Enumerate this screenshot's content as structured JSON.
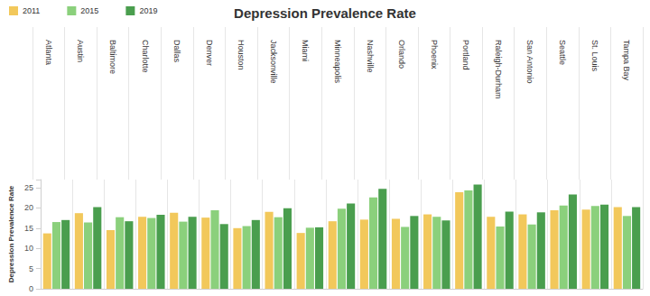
{
  "chart_data": {
    "type": "bar",
    "title": "Depression Prevalence Rate",
    "y_label": "Depression Prevalence Rate",
    "categories": [
      "Atlanta",
      "Austin",
      "Baltimore",
      "Charlotte",
      "Dallas",
      "Denver",
      "Houston",
      "Jacksonville",
      "Miami",
      "Minneapolis",
      "Nashville",
      "Orlando",
      "Phoenix",
      "Portland",
      "Raleigh-Durham",
      "San Antonio",
      "Seattle",
      "St. Louis",
      "Tampa Bay"
    ],
    "series": [
      {
        "name": "2011",
        "color": "#f2c85b",
        "values": [
          13.7,
          18.7,
          14.5,
          17.8,
          18.8,
          17.6,
          15.0,
          19.0,
          13.8,
          16.7,
          17.1,
          17.3,
          18.4,
          23.9,
          17.8,
          18.4,
          19.4,
          19.6,
          20.2
        ]
      },
      {
        "name": "2015",
        "color": "#8bd07c",
        "values": [
          16.5,
          16.4,
          17.7,
          17.5,
          16.6,
          19.4,
          15.5,
          17.7,
          15.1,
          19.8,
          22.6,
          15.3,
          17.8,
          24.3,
          15.4,
          15.9,
          20.6,
          20.5,
          18.0
        ]
      },
      {
        "name": "2019",
        "color": "#4a9e4e",
        "values": [
          17.0,
          20.2,
          16.7,
          18.3,
          17.8,
          16.0,
          17.0,
          19.9,
          15.2,
          21.1,
          24.7,
          18.0,
          16.9,
          25.8,
          19.1,
          18.9,
          23.3,
          20.8,
          20.2
        ]
      }
    ],
    "ylim": [
      0,
      27
    ],
    "yticks": [
      0,
      5,
      10,
      15,
      20,
      25
    ],
    "grid": false,
    "legend": "top-left"
  }
}
